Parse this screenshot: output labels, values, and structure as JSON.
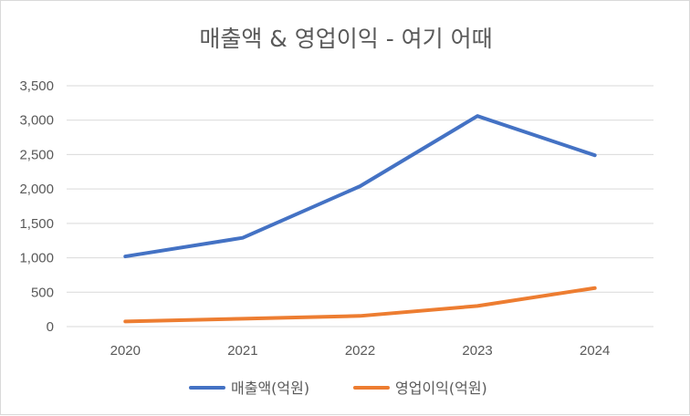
{
  "chart_data": {
    "type": "line",
    "title": "매출액 & 영업이익 - 여기 어때",
    "categories": [
      "2020",
      "2021",
      "2022",
      "2023",
      "2024"
    ],
    "xlabel": "",
    "ylabel": "",
    "ylim": [
      0,
      3500
    ],
    "yticks": [
      0,
      500,
      1000,
      1500,
      2000,
      2500,
      3000,
      3500
    ],
    "ytick_labels": [
      "0",
      "500",
      "1,000",
      "1,500",
      "2,000",
      "2,500",
      "3,000",
      "3,500"
    ],
    "grid": true,
    "legend_position": "bottom",
    "series": [
      {
        "name": "매출액(억원)",
        "color": "#4472C4",
        "values": [
          1020,
          1290,
          2040,
          3060,
          2490
        ]
      },
      {
        "name": "영업이익(억원)",
        "color": "#ED7D31",
        "values": [
          75,
          115,
          155,
          300,
          560
        ]
      }
    ]
  }
}
